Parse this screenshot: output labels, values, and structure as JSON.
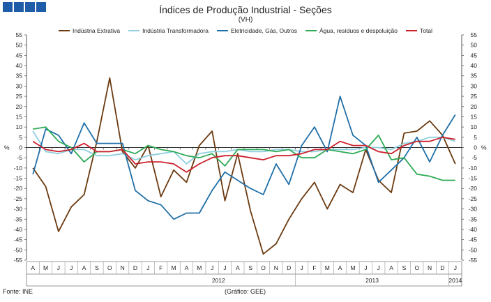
{
  "header": {
    "title": "Índices de Produção Industrial - Seções",
    "subtitle": "(VH)"
  },
  "footer": {
    "source": "Fonte: INE",
    "credit": "(Gráfico: GEE)"
  },
  "chart_data": {
    "type": "line",
    "title": "Índices de Produção Industrial - Seções",
    "subtitle": "(VH)",
    "ylabel": "%",
    "ylim": [
      -55,
      55
    ],
    "ytick_step": 5,
    "grid": false,
    "legend_position": "top",
    "categories": [
      "A",
      "M",
      "J",
      "J",
      "A",
      "S",
      "O",
      "N",
      "D",
      "J",
      "F",
      "M",
      "A",
      "M",
      "J",
      "J",
      "A",
      "S",
      "O",
      "N",
      "D",
      "J",
      "F",
      "M",
      "A",
      "M",
      "J",
      "J",
      "A",
      "S",
      "O",
      "N",
      "D",
      "J"
    ],
    "year_labels": [
      {
        "label": "2012",
        "start_index": 9,
        "end_index": 20
      },
      {
        "label": "2013",
        "start_index": 21,
        "end_index": 32
      },
      {
        "label": "2014",
        "start_index": 33,
        "end_index": 33
      }
    ],
    "series": [
      {
        "name": "Indústria Extrativa",
        "color": "#6b3a10",
        "values": [
          -10,
          -19,
          -41,
          -29,
          -23,
          3,
          34,
          -2,
          -10,
          1,
          -24,
          -11,
          -17,
          1,
          8,
          -26,
          -3,
          -31,
          -52,
          -47,
          -35,
          -25,
          -17,
          -30,
          -18,
          -22,
          -1,
          -16,
          -22,
          7,
          8,
          13,
          6,
          -8
        ]
      },
      {
        "name": "Indústria Transformadora",
        "color": "#8ecfe0",
        "values": [
          8,
          -2,
          -3,
          -1,
          -1,
          -4,
          -4,
          -3,
          -6,
          -4,
          -3,
          -2,
          -8,
          -3,
          -2,
          -2,
          -1,
          -2,
          -2,
          -1,
          -1,
          -2,
          -2,
          -1,
          -1,
          -1,
          0,
          0,
          -1,
          2,
          3,
          5,
          5,
          3
        ]
      },
      {
        "name": "Eletricidade, Gás, Outros",
        "color": "#1f6fa8",
        "values": [
          -13,
          9,
          6,
          -3,
          12,
          2,
          2,
          2,
          -21,
          -26,
          -28,
          -35,
          -32,
          -32,
          -21,
          -12,
          -16,
          -20,
          -23,
          -8,
          -18,
          1,
          10,
          -2,
          25,
          6,
          1,
          -17,
          -11,
          -5,
          5,
          -7,
          6,
          16
        ]
      },
      {
        "name": "Água, resíduos e despoluição",
        "color": "#2eaa55",
        "values": [
          9,
          10,
          3,
          0,
          -7,
          -2,
          -2,
          -1,
          -3,
          1,
          -1,
          -2,
          -4,
          -5,
          -3,
          -9,
          -1,
          -1,
          -1,
          -2,
          -1,
          -5,
          -5,
          -1,
          -2,
          -3,
          -1,
          6,
          -6,
          -5,
          -13,
          -14,
          -16,
          -16
        ]
      },
      {
        "name": "Total",
        "color": "#cc1f2a",
        "values": [
          3,
          -1,
          -2,
          -1,
          2,
          -2,
          -2,
          -1,
          -8,
          -7,
          -7,
          -8,
          -12,
          -8,
          -5,
          -4,
          -4,
          -5,
          -6,
          -4,
          -4,
          -3,
          -1,
          -1,
          3,
          1,
          1,
          -2,
          -3,
          1,
          3,
          3,
          5,
          4
        ]
      }
    ]
  }
}
